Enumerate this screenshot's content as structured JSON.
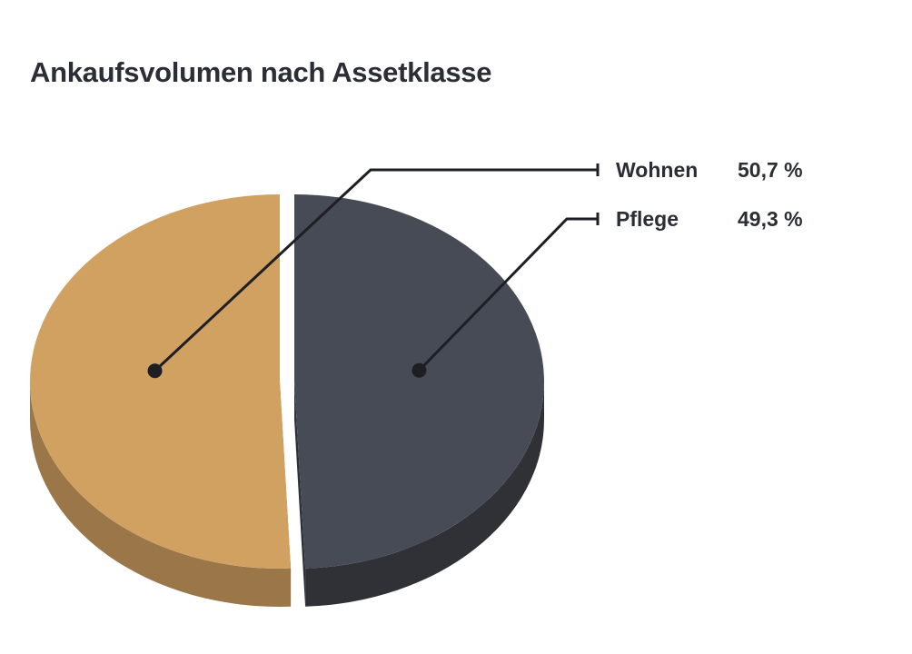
{
  "chart_data": {
    "type": "pie",
    "title": "Ankaufsvolumen nach Assetklasse",
    "slices": [
      {
        "label": "Wohnen",
        "value": 50.7,
        "display": "50,7 %",
        "color": "#d1a162",
        "side_color": "#9b7648"
      },
      {
        "label": "Pflege",
        "value": 49.3,
        "display": "49,3 %",
        "color": "#464b55",
        "side_color": "#2f3137"
      }
    ],
    "unit": "%",
    "legend_position": "right",
    "style": "3d-exploded"
  }
}
